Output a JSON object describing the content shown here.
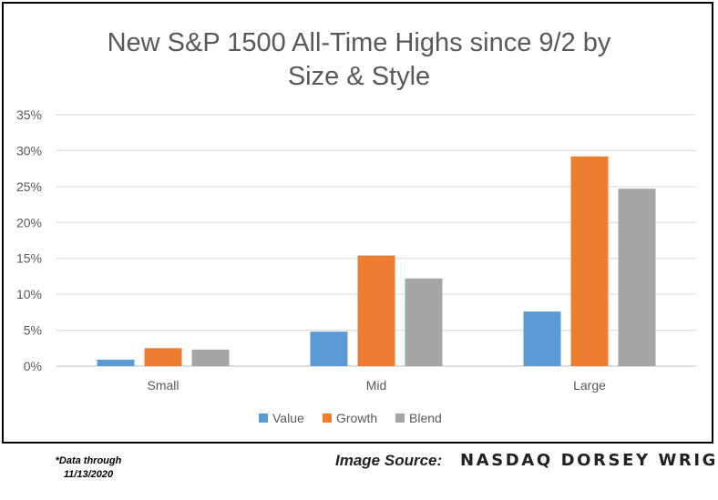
{
  "chart_data": {
    "type": "bar",
    "title_lines": [
      "New S&P 1500 All-Time Highs since 9/2 by",
      "Size & Style"
    ],
    "categories": [
      "Small",
      "Mid",
      "Large"
    ],
    "series": [
      {
        "name": "Value",
        "color": "#5B9BD5",
        "values": [
          0.9,
          4.8,
          7.6
        ]
      },
      {
        "name": "Growth",
        "color": "#ED7D31",
        "values": [
          2.5,
          15.4,
          29.2
        ]
      },
      {
        "name": "Blend",
        "color": "#A5A5A5",
        "values": [
          2.3,
          12.2,
          24.7
        ]
      }
    ],
    "y_ticks": [
      "0%",
      "5%",
      "10%",
      "15%",
      "20%",
      "25%",
      "30%",
      "35%"
    ],
    "ylim": [
      0,
      35
    ],
    "y_unit": "%",
    "grid": true,
    "legend_position": "bottom"
  },
  "footnote": {
    "line1": "*Data through",
    "line2": "11/13/2020"
  },
  "source": {
    "label": "Image Source:",
    "name": "NASDAQ DORSEY WRIGHT"
  }
}
